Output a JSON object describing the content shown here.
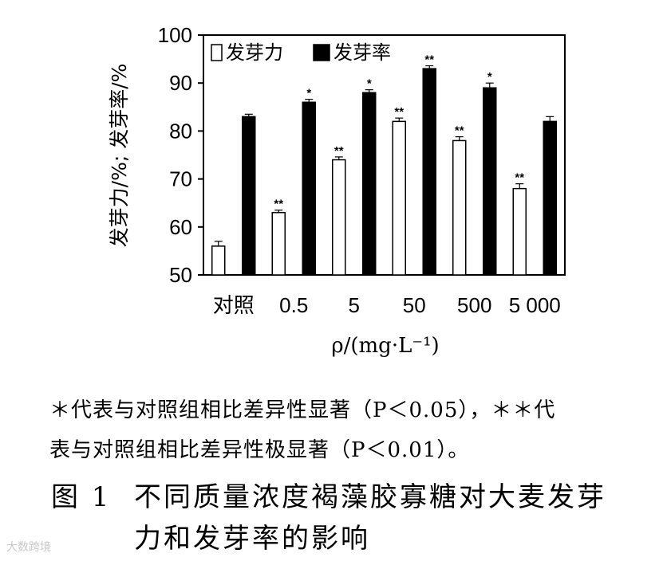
{
  "chart_data": {
    "type": "bar",
    "categories": [
      "对照",
      "0.5",
      "5",
      "50",
      "500",
      "5 000"
    ],
    "series": [
      {
        "name": "发芽力",
        "color": "#ffffff",
        "values": [
          56,
          63,
          74,
          82,
          78,
          68
        ],
        "errors": [
          1.0,
          0.5,
          0.6,
          0.7,
          0.8,
          1.0
        ],
        "marks": [
          "",
          "**",
          "**",
          "**",
          "**",
          "**"
        ]
      },
      {
        "name": "发芽率",
        "color": "#000000",
        "values": [
          83,
          86,
          88,
          93,
          89,
          82
        ],
        "errors": [
          0.5,
          0.6,
          0.6,
          0.6,
          1.0,
          1.0
        ],
        "marks": [
          "",
          "*",
          "*",
          "**",
          "*",
          ""
        ]
      }
    ],
    "xlabel": "ρ/(mg·L⁻¹)",
    "ylabel": "发芽力/%; 发芽率/%",
    "ylim": [
      50,
      100
    ],
    "yticks": [
      50,
      60,
      70,
      80,
      90,
      100
    ],
    "grid": false,
    "legend_position": "top-left"
  },
  "footnote": {
    "line1": "＊代表与对照组相比差异性显著（P＜0.05），＊＊代",
    "line2": "表与对照组相比差异性极显著（P＜0.01）。"
  },
  "caption": {
    "label": "图 1",
    "line1": "不同质量浓度褐藻胶寡糖对大麦发芽",
    "line2": "力和发芽率的影响"
  },
  "watermark": "大数跨境"
}
